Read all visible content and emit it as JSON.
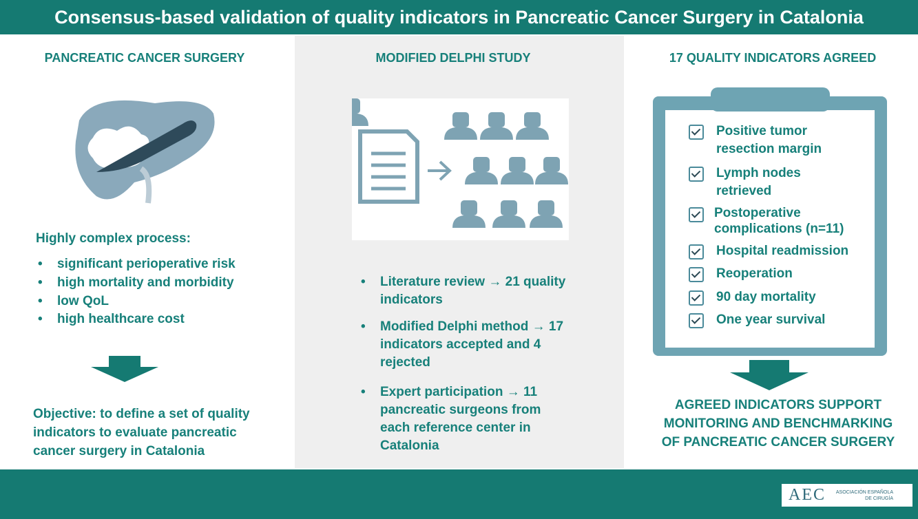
{
  "header": {
    "title": "Consensus-based validation of quality indicators in Pancreatic Cancer Surgery in Catalonia"
  },
  "columns": [
    {
      "heading": "PANCREATIC CANCER SURGERY",
      "intro": "Highly complex process:",
      "bullets": [
        "significant perioperative risk",
        "high mortality and morbidity",
        "low QoL",
        "high healthcare cost"
      ],
      "objective": "Objective: to define a set of quality indicators to evaluate pancreatic cancer surgery in Catalonia"
    },
    {
      "heading": "MODIFIED DELPHI STUDY",
      "bullets": [
        "Literature review → 21 quality indicators",
        "Modified Delphi method → 17 indicators accepted and 4 rejected",
        "Expert participation → 11 pancreatic surgeons from each reference center in Catalonia"
      ]
    },
    {
      "heading": "17 QUALITY INDICATORS AGREED",
      "checklist": [
        "Positive tumor resection margin",
        "Lymph nodes retrieved",
        "Postoperative complications (n=11)",
        "Hospital readmission",
        "Reoperation",
        "90 day mortality",
        "One year survival"
      ],
      "conclusion": "AGREED INDICATORS SUPPORT MONITORING AND BENCHMARKING OF PANCREATIC CANCER SURGERY"
    }
  ],
  "footer": {
    "logo": "AEC",
    "logo_text": "ASOCIACIÓN ESPAÑOLA DE CIRUGÍA"
  }
}
